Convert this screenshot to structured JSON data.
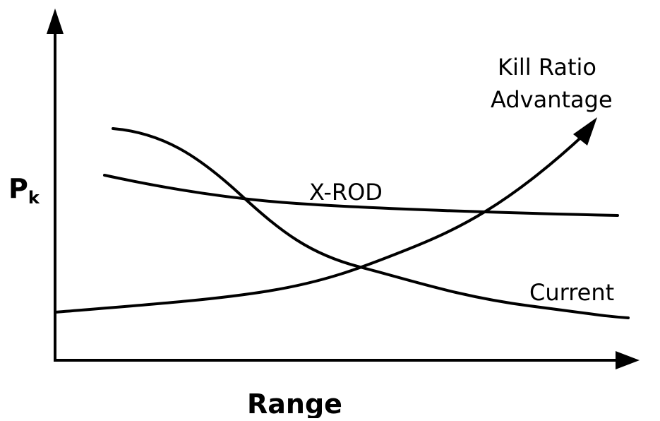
{
  "y_axis": {
    "symbol": "P",
    "subscript": "k"
  },
  "x_axis": {
    "label": "Range"
  },
  "curves": [
    {
      "label": "X-ROD"
    },
    {
      "label": "Current"
    },
    {
      "label_lines": [
        "Kill Ratio",
        "Advantage"
      ]
    }
  ]
}
